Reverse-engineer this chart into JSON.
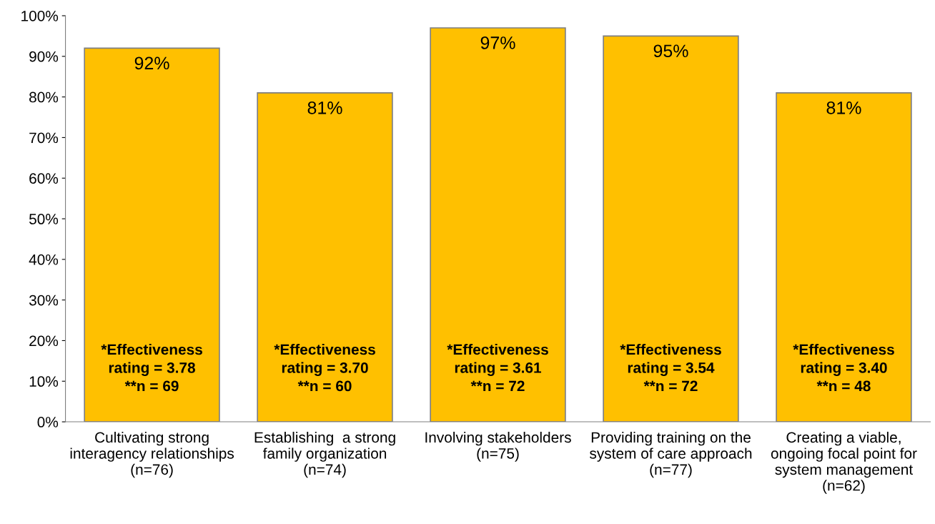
{
  "chart_data": {
    "type": "bar",
    "categories": [
      "Cultivating strong\ninteragency relationships\n(n=76)",
      "Establishing  a strong\nfamily organization\n(n=74)",
      "Involving stakeholders\n(n=75)",
      "Providing training on the\nsystem of care approach\n(n=77)",
      "Creating a viable,\nongoing focal point for\nsystem management\n(n=62)"
    ],
    "values": [
      92,
      81,
      97,
      95,
      81
    ],
    "value_labels": [
      "92%",
      "81%",
      "97%",
      "95%",
      "81%"
    ],
    "color": "#ffc000",
    "ylim": [
      0,
      100
    ],
    "yticks": [
      {
        "value": 0,
        "label": "0%"
      },
      {
        "value": 10,
        "label": "10%"
      },
      {
        "value": 20,
        "label": "20%"
      },
      {
        "value": 30,
        "label": "30%"
      },
      {
        "value": 40,
        "label": "40%"
      },
      {
        "value": 50,
        "label": "50%"
      },
      {
        "value": 60,
        "label": "60%"
      },
      {
        "value": 70,
        "label": "70%"
      },
      {
        "value": 80,
        "label": "80%"
      },
      {
        "value": 90,
        "label": "90%"
      },
      {
        "value": 100,
        "label": "100%"
      }
    ],
    "grid": false,
    "legend": false,
    "annotations": [
      "*Effectiveness\nrating = 3.78\n**n = 69",
      "*Effectiveness\nrating = 3.70\n**n = 60",
      "*Effectiveness\nrating = 3.61\n**n = 72",
      "*Effectiveness\nrating = 3.54\n**n = 72",
      "*Effectiveness\nrating = 3.40\n**n = 48"
    ]
  }
}
